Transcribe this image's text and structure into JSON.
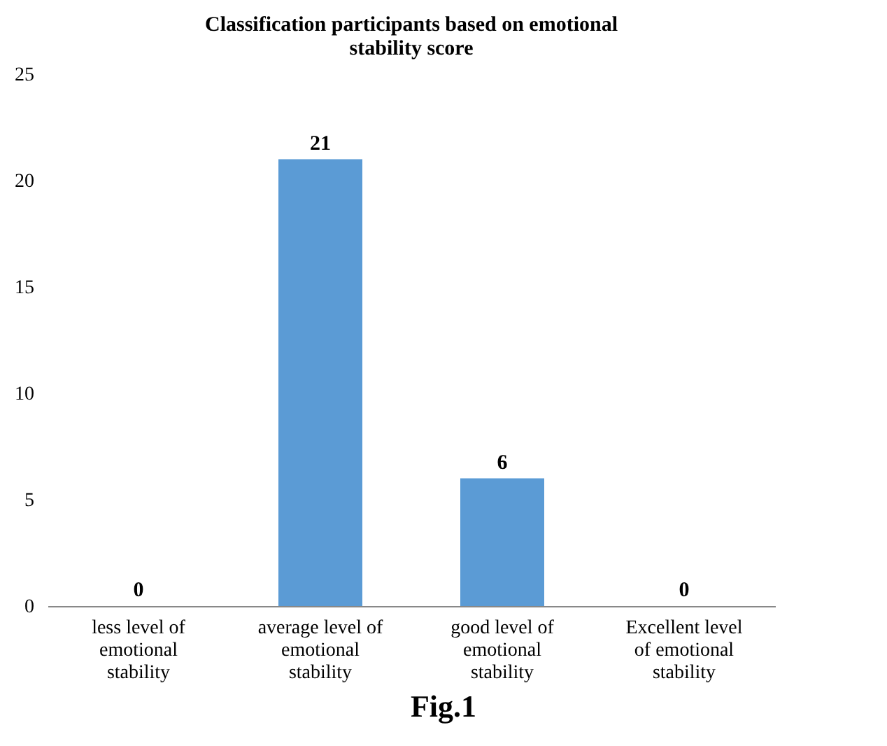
{
  "chart_data": {
    "type": "bar",
    "title": "Classification participants based on emotional stability score",
    "categories": [
      "less level of emotional stability",
      "average level of emotional stability",
      "good level of emotional stability",
      "Excellent level of emotional stability"
    ],
    "values": [
      0,
      21,
      6,
      0
    ],
    "color": "#5b9bd5",
    "ylim": [
      0,
      25
    ],
    "yticks": [
      0,
      5,
      10,
      15,
      20,
      25
    ],
    "grid": false,
    "data_labels": true,
    "annotations": [
      "Fig.1"
    ]
  }
}
